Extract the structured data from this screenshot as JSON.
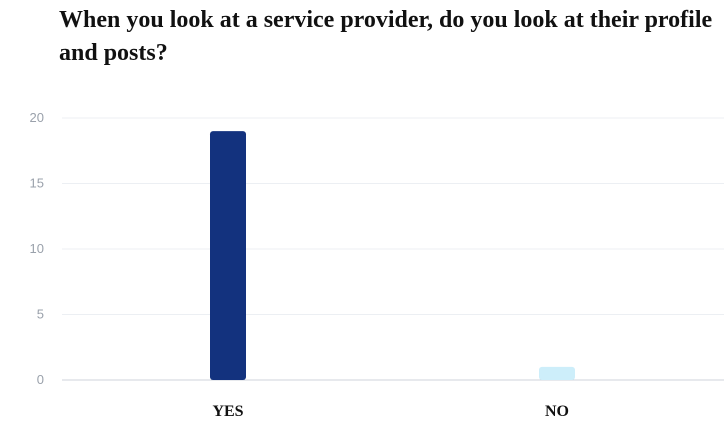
{
  "chart_data": {
    "type": "bar",
    "title": "When you look at a service provider, do you look at their profile and posts?",
    "categories": [
      "YES",
      "NO"
    ],
    "values": [
      19,
      1
    ],
    "colors": [
      "#13327e",
      "#cdeefa"
    ],
    "xlabel": "",
    "ylabel": "",
    "ylim": [
      0,
      20
    ],
    "yticks": [
      "0",
      "5",
      "10",
      "15",
      "20"
    ],
    "grid": true,
    "legend": "none"
  }
}
